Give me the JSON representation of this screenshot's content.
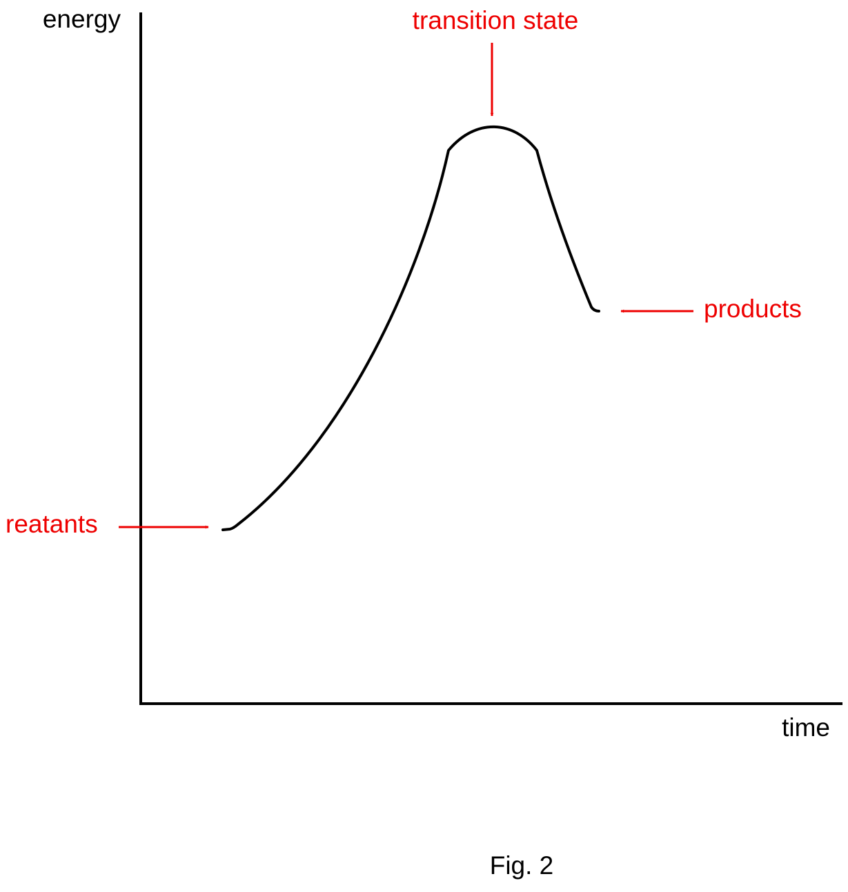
{
  "axes": {
    "y_label": "energy",
    "x_label": "time"
  },
  "annotations": {
    "transition_state": "transition state",
    "products": "products",
    "reactants": "reatants"
  },
  "caption": "Fig. 2"
}
